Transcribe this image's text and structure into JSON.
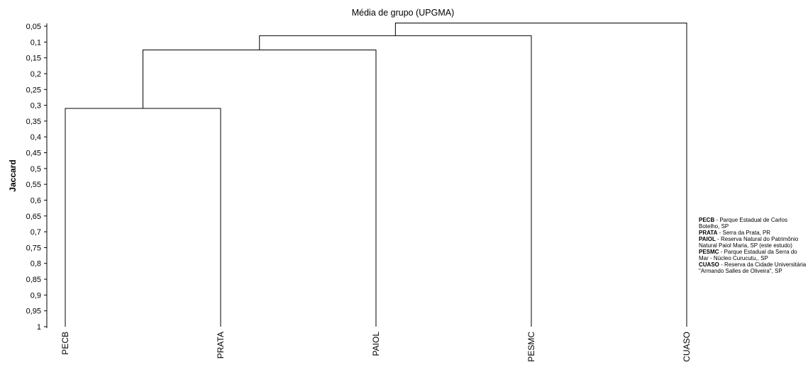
{
  "chart_data": {
    "type": "dendrogram",
    "title": "Média de grupo (UPGMA)",
    "ylabel": "Jaccard",
    "ylim": [
      0.05,
      1
    ],
    "y_inverted": true,
    "yticks": [
      "0,05",
      "0,1",
      "0,15",
      "0,2",
      "0,25",
      "0,3",
      "0,35",
      "0,4",
      "0,45",
      "0,5",
      "0,55",
      "0,6",
      "0,65",
      "0,7",
      "0,75",
      "0,8",
      "0,85",
      "0,9",
      "0,95",
      "1"
    ],
    "leaves": [
      "PECB",
      "PRATA",
      "PAIOL",
      "PESMC",
      "CUASO"
    ],
    "leaf_level": 1,
    "merges": [
      {
        "left": "PECB",
        "right": "PRATA",
        "height": 0.31
      },
      {
        "left": "PECB+PRATA",
        "right": "PAIOL",
        "height": 0.125
      },
      {
        "left": "PECB+PRATA+PAIOL",
        "right": "PESMC",
        "height": 0.08
      },
      {
        "left": "PECB+PRATA+PAIOL+PESMC",
        "right": "CUASO",
        "height": 0.04
      }
    ]
  },
  "legend": [
    {
      "code": "PECB",
      "text": " - Parque Estadual de Carlos Botelho, SP"
    },
    {
      "code": "PRATA",
      "text": " - Serra da Prata, PR"
    },
    {
      "code": "PAIOL",
      "text": " - Reserva Natural do Patrimônio Natural Paiol Maria, SP (este estudo)"
    },
    {
      "code": "PESMC",
      "text": " - Parque Estadual da Serra do Mar - Núcleo Curucutu,, SP"
    },
    {
      "code": "CUASO",
      "text": " - Reserva da Cidade Universitária \"Armando Salles de Oliveira\", SP"
    }
  ]
}
